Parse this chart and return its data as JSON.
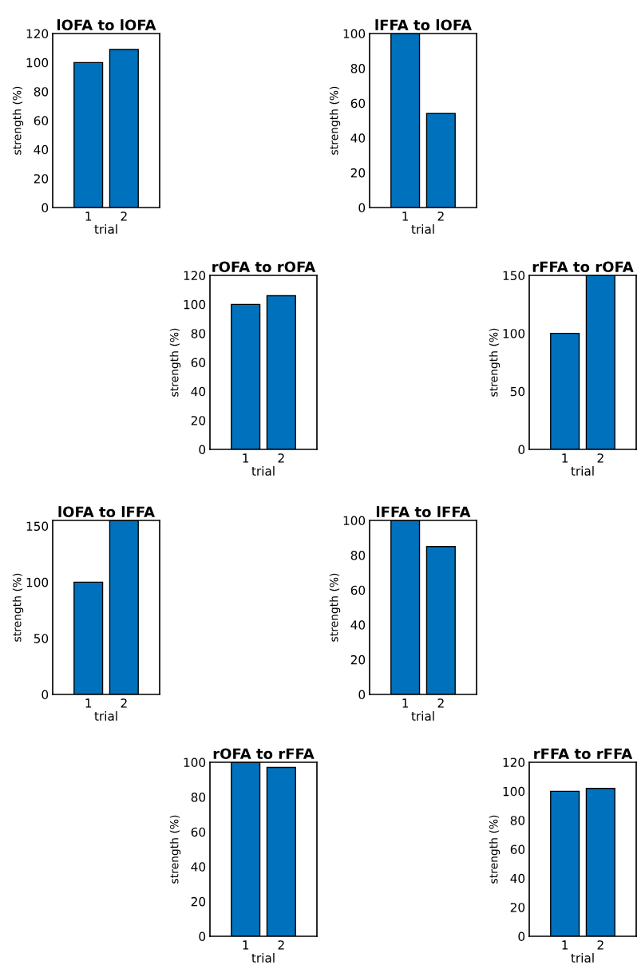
{
  "chart_data": [
    {
      "type": "bar",
      "title": "lOFA to lOFA",
      "xlabel": "trial",
      "ylabel": "strength (%)",
      "categories": [
        "1",
        "2"
      ],
      "values": [
        100,
        109
      ],
      "color": "#0072bd",
      "ylim": [
        0,
        120
      ],
      "yticks": [
        0,
        20,
        40,
        60,
        80,
        100,
        120
      ],
      "grid": false,
      "legend": false
    },
    {
      "type": "bar",
      "title": "lFFA to lOFA",
      "xlabel": "trial",
      "ylabel": "strength (%)",
      "categories": [
        "1",
        "2"
      ],
      "values": [
        100,
        54
      ],
      "color": "#0072bd",
      "ylim": [
        0,
        100
      ],
      "yticks": [
        0,
        20,
        40,
        60,
        80,
        100
      ],
      "grid": false,
      "legend": false
    },
    {
      "type": "bar",
      "title": "rOFA to rOFA",
      "xlabel": "trial",
      "ylabel": "strength (%)",
      "categories": [
        "1",
        "2"
      ],
      "values": [
        100,
        106
      ],
      "color": "#0072bd",
      "ylim": [
        0,
        120
      ],
      "yticks": [
        0,
        20,
        40,
        60,
        80,
        100,
        120
      ],
      "grid": false,
      "legend": false
    },
    {
      "type": "bar",
      "title": "rFFA to rOFA",
      "xlabel": "trial",
      "ylabel": "strength (%)",
      "categories": [
        "1",
        "2"
      ],
      "values": [
        100,
        150
      ],
      "color": "#0072bd",
      "ylim": [
        0,
        150
      ],
      "yticks": [
        0,
        50,
        100,
        150
      ],
      "grid": false,
      "legend": false
    },
    {
      "type": "bar",
      "title": "lOFA to lFFA",
      "xlabel": "trial",
      "ylabel": "strength (%)",
      "categories": [
        "1",
        "2"
      ],
      "values": [
        100,
        155
      ],
      "color": "#0072bd",
      "ylim": [
        0,
        155
      ],
      "yticks": [
        0,
        50,
        100,
        150
      ],
      "grid": false,
      "legend": false
    },
    {
      "type": "bar",
      "title": "lFFA to lFFA",
      "xlabel": "trial",
      "ylabel": "strength (%)",
      "categories": [
        "1",
        "2"
      ],
      "values": [
        100,
        85
      ],
      "color": "#0072bd",
      "ylim": [
        0,
        100
      ],
      "yticks": [
        0,
        20,
        40,
        60,
        80,
        100
      ],
      "grid": false,
      "legend": false
    },
    {
      "type": "bar",
      "title": "rOFA to rFFA",
      "xlabel": "trial",
      "ylabel": "strength (%)",
      "categories": [
        "1",
        "2"
      ],
      "values": [
        100,
        97
      ],
      "color": "#0072bd",
      "ylim": [
        0,
        100
      ],
      "yticks": [
        0,
        20,
        40,
        60,
        80,
        100
      ],
      "grid": false,
      "legend": false
    },
    {
      "type": "bar",
      "title": "rFFA to rFFA",
      "xlabel": "trial",
      "ylabel": "strength (%)",
      "categories": [
        "1",
        "2"
      ],
      "values": [
        100,
        102
      ],
      "color": "#0072bd",
      "ylim": [
        0,
        120
      ],
      "yticks": [
        0,
        20,
        40,
        60,
        80,
        100,
        120
      ],
      "grid": false,
      "legend": false
    }
  ]
}
